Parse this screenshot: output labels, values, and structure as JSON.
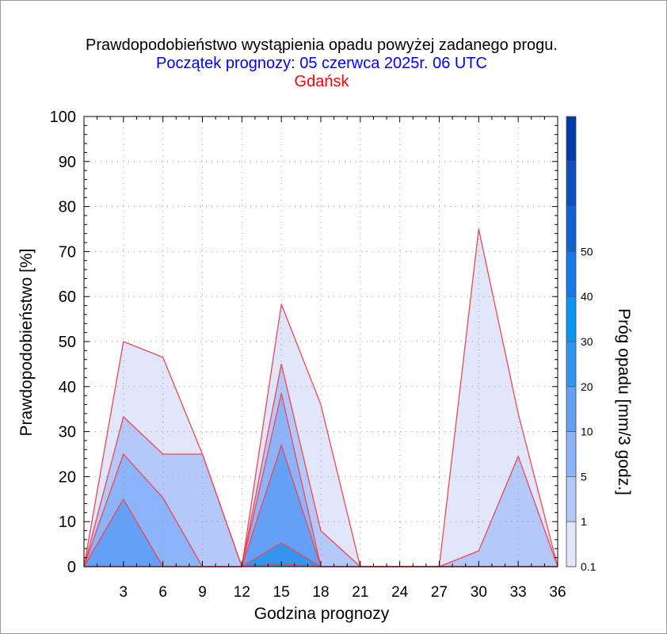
{
  "chart_data": {
    "type": "area",
    "title": "Prawdopodobieństwo wystąpienia opadu powyżej zadanego progu.",
    "subtitle": "Początek prognozy: 05 czerwca 2025r. 06 UTC",
    "location": "Gdańsk",
    "xlabel": "Godzina prognozy",
    "ylabel": "Prawdopodobieństwo [%]",
    "xlim": [
      0,
      36
    ],
    "ylim": [
      0,
      100
    ],
    "x_ticks": [
      "3",
      "6",
      "9",
      "12",
      "15",
      "18",
      "21",
      "24",
      "27",
      "30",
      "33",
      "36"
    ],
    "y_ticks": [
      "0",
      "10",
      "20",
      "30",
      "40",
      "50",
      "60",
      "70",
      "80",
      "90",
      "100"
    ],
    "x": [
      0,
      3,
      6,
      9,
      12,
      15,
      18,
      21,
      24,
      27,
      30,
      33,
      36
    ],
    "series": [
      {
        "threshold": 0.1,
        "values": [
          0,
          50,
          46.5,
          25,
          0,
          58.3,
          36,
          0,
          0,
          0,
          75,
          34,
          0
        ]
      },
      {
        "threshold": 1,
        "values": [
          0,
          33.3,
          25,
          25,
          0,
          45,
          8,
          0,
          0,
          0,
          3.5,
          24.5,
          0
        ]
      },
      {
        "threshold": 5,
        "values": [
          0,
          25,
          15.3,
          0,
          0,
          38.5,
          0,
          0,
          0,
          0,
          0,
          0,
          0
        ]
      },
      {
        "threshold": 10,
        "values": [
          0,
          15,
          0,
          0,
          0,
          27,
          0,
          0,
          0,
          0,
          0,
          0,
          0
        ]
      },
      {
        "threshold": 20,
        "values": [
          0,
          0,
          0,
          0,
          0,
          5.3,
          0,
          0,
          0,
          0,
          0,
          0,
          0
        ]
      },
      {
        "threshold": 30,
        "values": [
          0,
          0,
          0,
          0,
          0,
          0.6,
          0,
          0,
          0,
          0,
          0,
          0,
          0
        ]
      }
    ],
    "colorbar": {
      "label": "Próg opadu [mm/3 godz.]",
      "ticks": [
        "0.1",
        "1",
        "5",
        "10",
        "20",
        "30",
        "40",
        "50"
      ],
      "colors": [
        "#e1e6fa",
        "#b4c8fa",
        "#8cb4fa",
        "#64a0f5",
        "#3296f0",
        "#0a96f0",
        "#1478e6",
        "#0f64d2",
        "#0a50be",
        "#003ca5"
      ]
    },
    "line_color": "#f04650",
    "grid": true,
    "legend": "colorbar-right"
  }
}
